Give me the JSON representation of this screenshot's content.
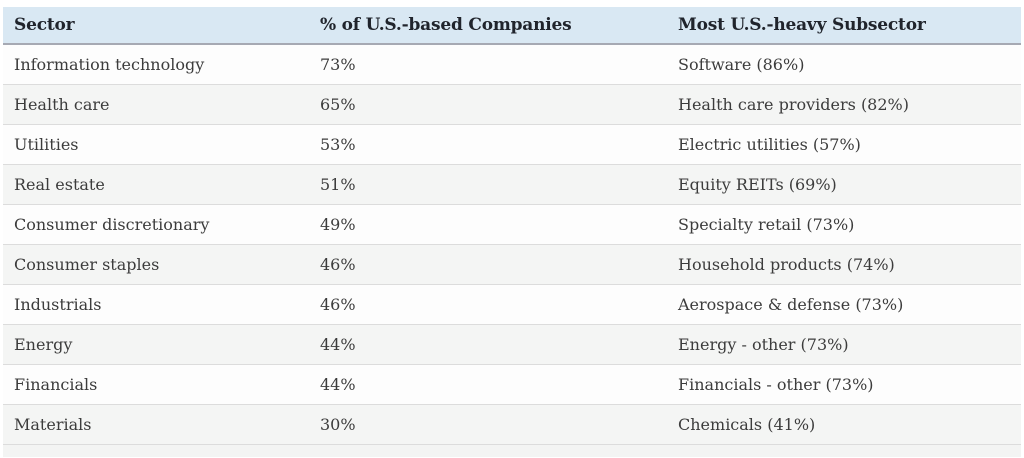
{
  "chart_data": {
    "type": "table",
    "columns": [
      "Sector",
      "% of U.S.-based Companies",
      "Most U.S.-heavy Subsector"
    ],
    "rows": [
      [
        "Information technology",
        "73%",
        "Software (86%)"
      ],
      [
        "Health care",
        "65%",
        "Health care providers (82%)"
      ],
      [
        "Utilities",
        "53%",
        "Electric utilities (57%)"
      ],
      [
        "Real estate",
        "51%",
        "Equity REITs (69%)"
      ],
      [
        "Consumer discretionary",
        "49%",
        "Specialty retail (73%)"
      ],
      [
        "Consumer staples",
        "46%",
        "Household products (74%)"
      ],
      [
        "Industrials",
        "46%",
        "Aerospace & defense (73%)"
      ],
      [
        "Energy",
        "44%",
        "Energy - other (73%)"
      ],
      [
        "Financials",
        "44%",
        "Financials - other (73%)"
      ],
      [
        "Materials",
        "30%",
        "Chemicals (41%)"
      ]
    ],
    "layout": {
      "striped": true,
      "header_position": "top",
      "column_alignment": [
        "left",
        "left",
        "left"
      ]
    }
  },
  "colors": {
    "page_bg": "#ffffff",
    "header_bg": "#d9e8f3",
    "header_text": "#20242c",
    "header_border": "#a6a9b3",
    "body_text": "#3c3c3c",
    "row_odd_bg": "#fdfdfd",
    "row_even_bg": "#f4f5f4",
    "row_border": "#dcdcdc",
    "footer_bg": "#f3f4f3"
  }
}
